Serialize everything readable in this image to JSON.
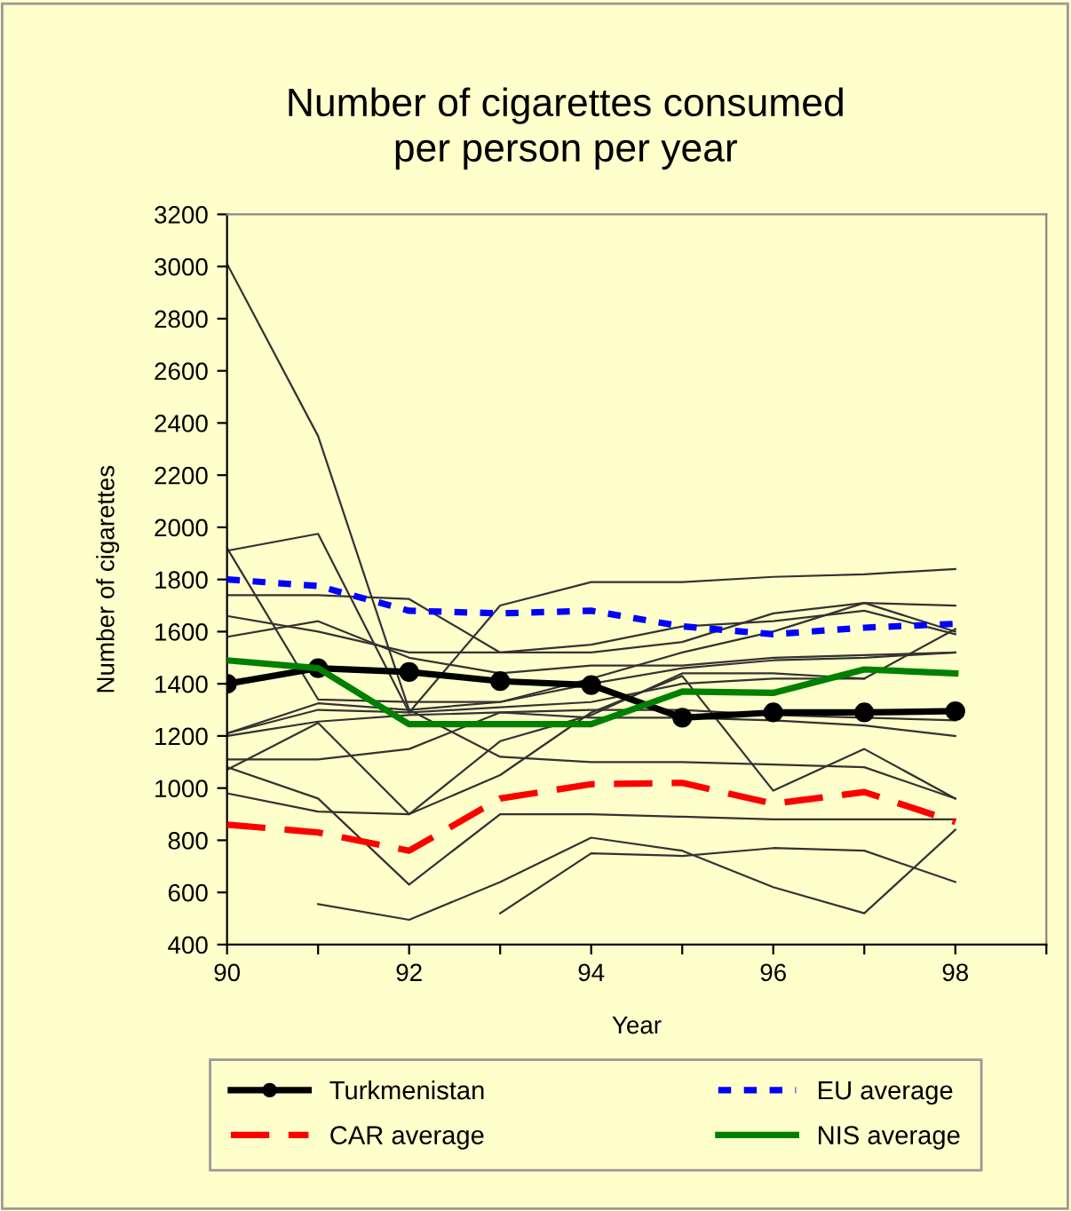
{
  "chart_data": {
    "type": "line",
    "title": "Number of cigarettes consumed\nper person per year",
    "xlabel": "Year",
    "ylabel": "Number of cigarettes",
    "x": [
      90,
      91,
      92,
      93,
      94,
      95,
      96,
      97,
      98
    ],
    "xlim": [
      90,
      99
    ],
    "xticks": [
      90,
      {
        "value": 91,
        "label": null
      },
      92,
      {
        "value": 93,
        "label": null
      },
      94,
      {
        "value": 95,
        "label": null
      },
      96,
      {
        "value": 97,
        "label": null
      },
      98,
      {
        "value": 99,
        "label": null
      }
    ],
    "ylim": [
      400,
      3200
    ],
    "yticks": [
      400,
      600,
      800,
      1000,
      1200,
      1400,
      1600,
      1800,
      2000,
      2200,
      2400,
      2600,
      2800,
      3000,
      3200
    ],
    "grid": false,
    "legend": "bottom",
    "series": [
      {
        "color": "#333333",
        "values": [
          3010,
          2350,
          1300,
          1120,
          1100,
          1100,
          1090,
          1080,
          960
        ]
      },
      {
        "color": "#333333",
        "values": [
          1910,
          1975,
          1290,
          1700,
          1790,
          1790,
          1810,
          1820,
          1840
        ]
      },
      {
        "color": "#333333",
        "values": [
          1920,
          1340,
          1330,
          1330,
          1420,
          1520,
          1600,
          1710,
          1600
        ]
      },
      {
        "color": "#333333",
        "values": [
          1740,
          1740,
          1725,
          1520,
          1520,
          1560,
          1670,
          1710,
          1700
        ]
      },
      {
        "color": "#333333",
        "values": [
          1660,
          1600,
          1520,
          1520,
          1550,
          1620,
          1640,
          1680,
          1590
        ]
      },
      {
        "color": "#333333",
        "values": [
          1580,
          1640,
          1500,
          1440,
          1470,
          1470,
          1500,
          1510,
          1520
        ]
      },
      {
        "color": "#333333",
        "values": [
          1210,
          1325,
          1300,
          1330,
          1400,
          1460,
          1490,
          1500,
          1520
        ]
      },
      {
        "color": "#333333",
        "values": [
          1210,
          1300,
          1290,
          1310,
          1330,
          1400,
          1420,
          1420,
          null
        ]
      },
      {
        "color": "#333333",
        "values": [
          1200,
          1255,
          1280,
          1290,
          1270,
          1270,
          1260,
          1240,
          1200
        ]
      },
      {
        "color": "#333333",
        "values": [
          1110,
          1110,
          1150,
          1290,
          1300,
          1300,
          1280,
          1270,
          1260
        ]
      },
      {
        "color": "#333333",
        "values": [
          1070,
          1250,
          900,
          1050,
          1290,
          1430,
          990,
          1150,
          960
        ]
      },
      {
        "color": "#333333",
        "values": [
          980,
          910,
          900,
          1180,
          1280,
          1440,
          1440,
          1420,
          1610
        ]
      },
      {
        "color": "#333333",
        "values": [
          1080,
          960,
          630,
          900,
          900,
          890,
          880,
          880,
          880
        ]
      },
      {
        "color": "#333333",
        "values": [
          null,
          555,
          495,
          640,
          810,
          760,
          620,
          520,
          840
        ]
      },
      {
        "color": "#333333",
        "values": [
          null,
          null,
          null,
          520,
          750,
          740,
          770,
          760,
          640
        ]
      },
      {
        "name": "Turkmenistan",
        "color": "#000000",
        "marker": "circle",
        "line_style": "solid",
        "values": [
          1400,
          1460,
          1445,
          1410,
          1395,
          1270,
          1290,
          1290,
          1295
        ]
      },
      {
        "name": "EU average",
        "color": "#0000ff",
        "line_style": "dotted",
        "values": [
          1800,
          1775,
          1680,
          1670,
          1680,
          1620,
          1590,
          1615,
          1630
        ]
      },
      {
        "name": "CAR average",
        "color": "#ff0000",
        "line_style": "dashed",
        "values": [
          860,
          830,
          760,
          960,
          1015,
          1020,
          940,
          985,
          870
        ]
      },
      {
        "name": "NIS average",
        "color": "#008000",
        "line_style": "solid",
        "values": [
          1490,
          1460,
          1245,
          1245,
          1245,
          1370,
          1365,
          1455,
          1440
        ]
      }
    ]
  }
}
